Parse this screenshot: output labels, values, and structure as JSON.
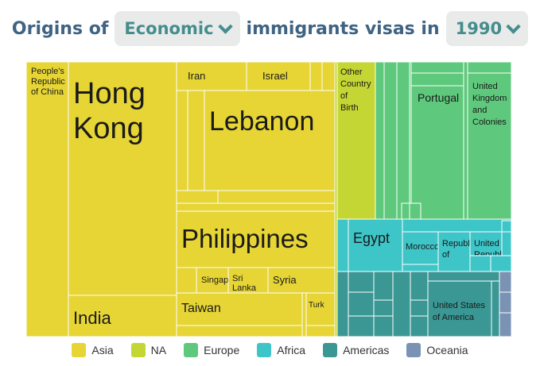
{
  "header": {
    "prefix": "Origins of",
    "category_dropdown": "Economic",
    "middle": "immigrants visas in",
    "year_dropdown": "1990"
  },
  "colors": {
    "Asia": "#e6d535",
    "NA": "#c4d633",
    "Europe": "#5ec97c",
    "Africa": "#3ec5c8",
    "Americas": "#3a9794",
    "Oceania": "#7a92b3"
  },
  "legend": [
    {
      "label": "Asia",
      "key": "Asia"
    },
    {
      "label": "NA",
      "key": "NA"
    },
    {
      "label": "Europe",
      "key": "Europe"
    },
    {
      "label": "Africa",
      "key": "Africa"
    },
    {
      "label": "Americas",
      "key": "Americas"
    },
    {
      "label": "Oceania",
      "key": "Oceania"
    }
  ],
  "chart_data": {
    "type": "treemap",
    "title": "Origins of Economic immigrants visas in 1990",
    "regions": [
      "Asia",
      "NA",
      "Europe",
      "Africa",
      "Americas",
      "Oceania"
    ],
    "labeled_cells": [
      {
        "label": "People's Republic of China",
        "region": "Asia"
      },
      {
        "label": "Hong Kong",
        "region": "Asia"
      },
      {
        "label": "India",
        "region": "Asia"
      },
      {
        "label": "Iran",
        "region": "Asia"
      },
      {
        "label": "Israel",
        "region": "Asia"
      },
      {
        "label": "Lebanon",
        "region": "Asia"
      },
      {
        "label": "Philippines",
        "region": "Asia"
      },
      {
        "label": "Singap",
        "region": "Asia"
      },
      {
        "label": "Sri Lanka",
        "region": "Asia"
      },
      {
        "label": "Syria",
        "region": "Asia"
      },
      {
        "label": "Taiwan",
        "region": "Asia"
      },
      {
        "label": "Turk",
        "region": "Asia"
      },
      {
        "label": "Other Country of Birth",
        "region": "NA"
      },
      {
        "label": "Portugal",
        "region": "Europe"
      },
      {
        "label": "United Kingdom and Colonies",
        "region": "Europe"
      },
      {
        "label": "Egypt",
        "region": "Africa"
      },
      {
        "label": "Morocco",
        "region": "Africa"
      },
      {
        "label": "Republic of",
        "region": "Africa"
      },
      {
        "label": "United Republic",
        "region": "Africa"
      },
      {
        "label": "United States of America",
        "region": "Americas"
      }
    ]
  }
}
